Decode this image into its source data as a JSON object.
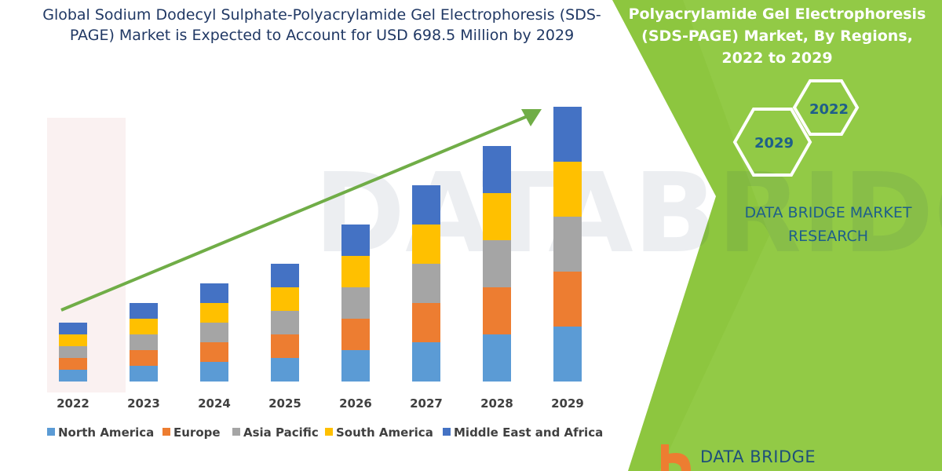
{
  "title": "Global Sodium Dodecyl Sulphate-Polyacrylamide Gel Electrophoresis (SDS-PAGE) Market is Expected to Account for USD 698.5 Million by 2029",
  "side_panel": {
    "title": "Polyacrylamide Gel Electrophoresis (SDS-PAGE) Market, By Regions, 2022 to 2029",
    "hex_labels": [
      "2022",
      "2029"
    ],
    "company": "DATA BRIDGE MARKET RESEARCH",
    "bottom_brand": "DATA BRIDGE"
  },
  "colors": {
    "north_america": "#5b9bd5",
    "europe": "#ed7d31",
    "asia_pacific": "#a5a5a5",
    "south_america": "#ffc000",
    "middle_east_africa": "#4472c4",
    "trend_arrow": "#70ad47",
    "panel_green": "#8dc63f",
    "accent_blue": "#1e5f8a"
  },
  "chart_data": {
    "type": "bar",
    "stacked": true,
    "categories": [
      "2022",
      "2023",
      "2024",
      "2025",
      "2026",
      "2027",
      "2028",
      "2029"
    ],
    "series": [
      {
        "name": "North America",
        "values": [
          15,
          20,
          25,
          30,
          40,
          50,
          60,
          70
        ]
      },
      {
        "name": "Europe",
        "values": [
          15,
          20,
          25,
          30,
          40,
          50,
          60,
          70
        ]
      },
      {
        "name": "Asia Pacific",
        "values": [
          15,
          20,
          25,
          30,
          40,
          50,
          60,
          70
        ]
      },
      {
        "name": "South America",
        "values": [
          15,
          20,
          25,
          30,
          40,
          50,
          60,
          70
        ]
      },
      {
        "name": "Middle East and Africa",
        "values": [
          15,
          20,
          25,
          30,
          40,
          50,
          60,
          70
        ]
      }
    ],
    "ylim": [
      0,
      350
    ],
    "grid": false,
    "legend_position": "bottom",
    "trend_arrow": true
  }
}
